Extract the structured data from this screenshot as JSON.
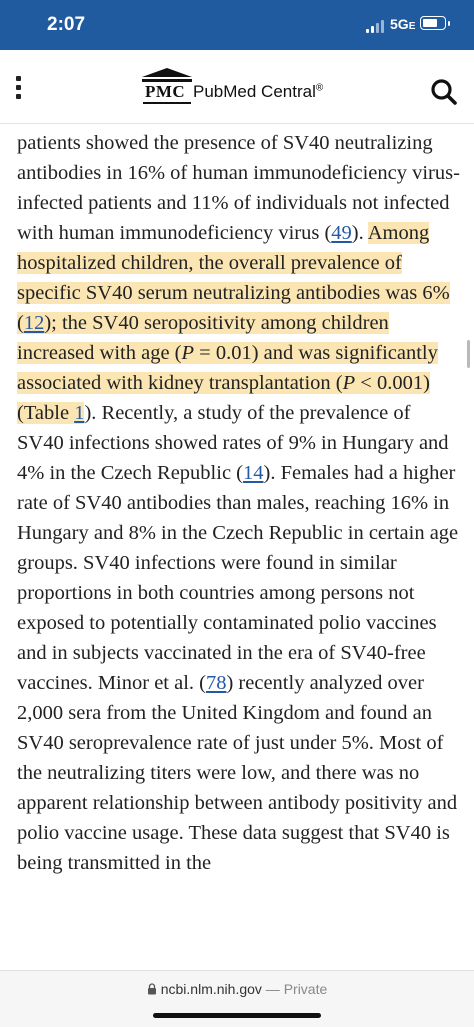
{
  "status_bar": {
    "time": "2:07",
    "network": "5G",
    "network_suffix": "E"
  },
  "header": {
    "logo_abbrev": "PMC",
    "logo_name": "PubMed Central",
    "logo_mark": "®",
    "menu_icon": "more-vertical-icon",
    "search_icon": "search-icon"
  },
  "article": {
    "segments": {
      "s1": "a study to determine the seroprevalence among such patients showed the presence of SV40 neutralizing antibodies in 16% of human immunodeficiency virus-infected patients and 11% of individuals not infected with human immunodeficiency virus (",
      "ref49": "49",
      "s2": "). ",
      "h1": "Among hospitalized children, the overall prevalence of specific SV40 serum neutralizing antibodies was 6% (",
      "ref12": "12",
      "h2": "); the SV40 seropositivity among children increased with age (",
      "p1": "P",
      "h3": " = 0.01) and was significantly associated with kidney transplantation (",
      "p2": "P",
      "h4": " < 0.001) (Table ",
      "table1": "1",
      "s3": "). Recently, a study of the prevalence of SV40 infections showed rates of 9% in Hungary and 4% in the Czech Republic (",
      "ref14": "14",
      "s4": "). Females had a higher rate of SV40 antibodies than males, reaching 16% in Hungary and 8% in the Czech Republic in certain age groups. SV40 infections were found in similar proportions in both countries among persons not exposed to potentially contaminated polio vaccines and in subjects vaccinated in the era of SV40-free vaccines. Minor et al. (",
      "ref78": "78",
      "s5": ") recently analyzed over 2,000 sera from the United Kingdom and found an SV40 seroprevalence rate of just under 5%. Most of the neutralizing titers were low, and there was no apparent relationship between antibody positivity and polio vaccine usage. These data suggest that SV40 is being transmitted in the"
    },
    "highlight_color": "#fbe6b3",
    "link_color": "#2258a5"
  },
  "url_bar": {
    "domain": "ncbi.nlm.nih.gov",
    "separator": " — ",
    "mode": "Private"
  },
  "colors": {
    "status_bar": "#1f5b9e"
  }
}
